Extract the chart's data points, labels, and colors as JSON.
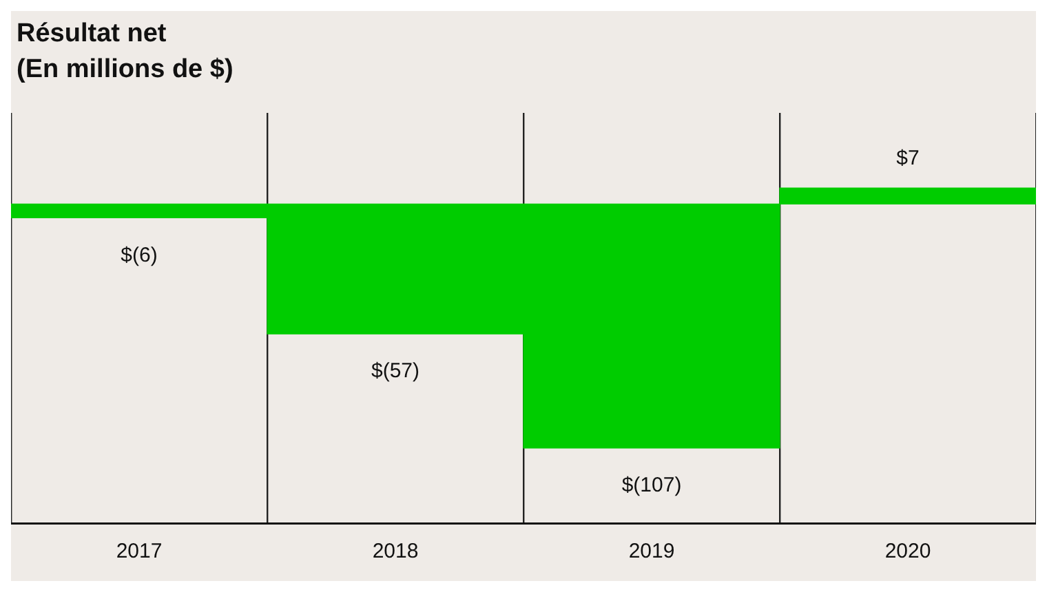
{
  "chart_data": {
    "type": "bar",
    "title": "Résultat net",
    "subtitle": "(En millions de $)",
    "categories": [
      "2017",
      "2018",
      "2019",
      "2020"
    ],
    "values": [
      -6,
      -57,
      -107,
      7
    ],
    "value_labels": [
      "$(6)",
      "$(57)",
      "$(107)",
      "$7"
    ],
    "color": "#00cc00",
    "ylim": [
      -140,
      40
    ],
    "tick_labels": "x",
    "grid": "x",
    "legend": false
  }
}
